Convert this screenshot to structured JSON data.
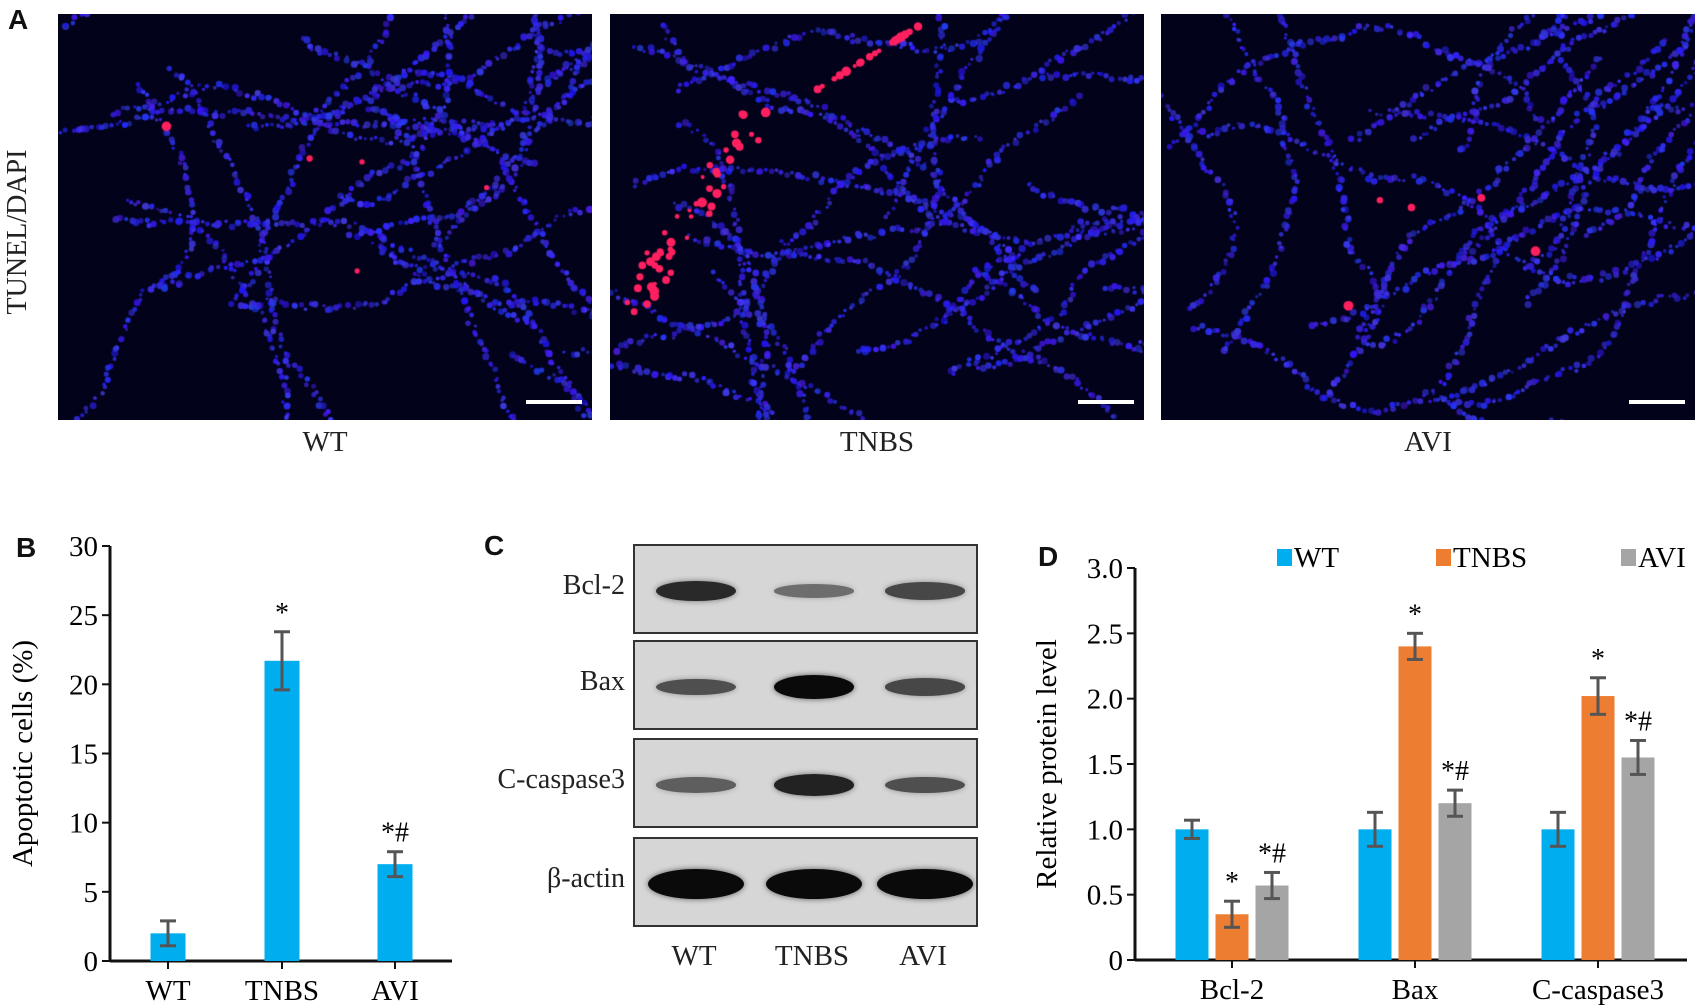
{
  "panels": {
    "a": "A",
    "b": "B",
    "c": "C",
    "d": "D"
  },
  "panel_a": {
    "ylabel": "TUNEL/DAPI",
    "images": [
      {
        "label": "WT",
        "red_cells": "few"
      },
      {
        "label": "TNBS",
        "red_cells": "many"
      },
      {
        "label": "AVI",
        "red_cells": "few"
      }
    ],
    "colors": {
      "dapi": "#1a1aff",
      "tunel": "#ff2060",
      "background": "#02021a"
    }
  },
  "panel_c": {
    "rows": [
      {
        "label": "Bcl-2",
        "intensity": [
          0.8,
          0.35,
          0.6
        ]
      },
      {
        "label": "Bax",
        "intensity": [
          0.55,
          1.0,
          0.6
        ]
      },
      {
        "label": "C-caspase3",
        "intensity": [
          0.45,
          0.85,
          0.55
        ]
      },
      {
        "label": "β-actin",
        "intensity": [
          1.0,
          1.0,
          1.0
        ]
      }
    ],
    "lanes": [
      "WT",
      "TNBS",
      "AVI"
    ]
  },
  "chart_data": [
    {
      "type": "bar",
      "panel": "B",
      "categories": [
        "WT",
        "TNBS",
        "AVI"
      ],
      "values": [
        2.0,
        21.7,
        7.0
      ],
      "errors": [
        0.9,
        2.1,
        0.9
      ],
      "annotations": [
        "",
        "*",
        "*#"
      ],
      "ylabel": "Apoptotic cells (%)",
      "xlabel": "",
      "ylim": [
        0,
        30
      ],
      "yticks": [
        "0",
        "5",
        "10",
        "15",
        "20",
        "25",
        "30"
      ],
      "color": "#00aeef"
    },
    {
      "type": "bar",
      "panel": "D",
      "categories": [
        "Bcl-2",
        "Bax",
        "C-caspase3"
      ],
      "series": [
        {
          "name": "WT",
          "values": [
            1.0,
            1.0,
            1.0
          ],
          "errors": [
            0.07,
            0.13,
            0.13
          ],
          "annotations": [
            "",
            "",
            ""
          ],
          "color": "#00aeef"
        },
        {
          "name": "TNBS",
          "values": [
            0.35,
            2.4,
            2.02
          ],
          "errors": [
            0.1,
            0.1,
            0.14
          ],
          "annotations": [
            "*",
            "*",
            "*"
          ],
          "color": "#ed7d31"
        },
        {
          "name": "AVI",
          "values": [
            0.57,
            1.2,
            1.55
          ],
          "errors": [
            0.1,
            0.1,
            0.13
          ],
          "annotations": [
            "*#",
            "*#",
            "*#"
          ],
          "color": "#a5a5a5"
        }
      ],
      "ylabel": "Relative protein level",
      "xlabel": "",
      "ylim": [
        0,
        3.0
      ],
      "yticks": [
        "0",
        "0.5",
        "1.0",
        "1.5",
        "2.0",
        "2.5",
        "3.0"
      ],
      "legend_position": "top"
    }
  ]
}
